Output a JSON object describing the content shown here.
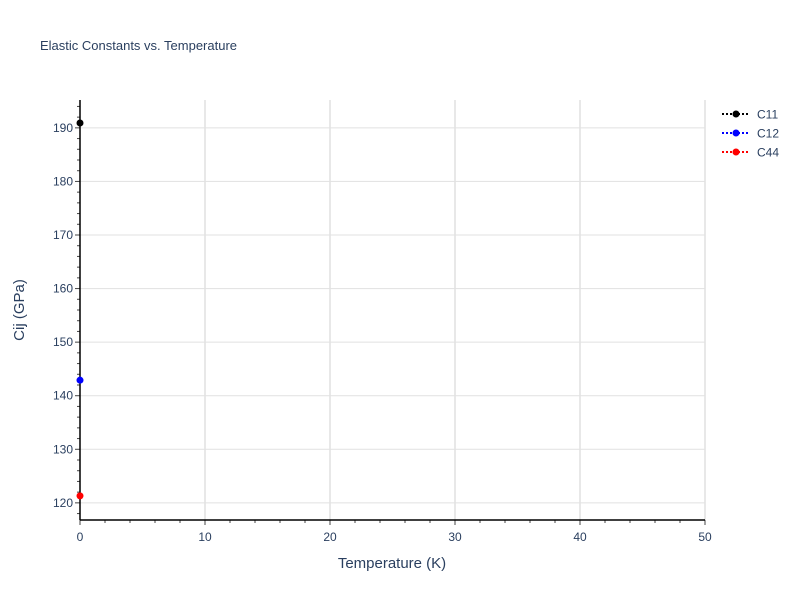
{
  "chart_data": {
    "type": "scatter",
    "title": "Elastic Constants vs. Temperature",
    "xlabel": "Temperature (K)",
    "ylabel": "Cij (GPa)",
    "xlim": [
      0,
      50
    ],
    "ylim": [
      116.8,
      195.2
    ],
    "xticks": [
      0,
      10,
      20,
      30,
      40,
      50
    ],
    "yticks": [
      120,
      130,
      140,
      150,
      160,
      170,
      180,
      190
    ],
    "grid": true,
    "legend_position": "top-right",
    "series": [
      {
        "name": "C11",
        "color": "#000000",
        "line": "dotted",
        "x": [
          0
        ],
        "y": [
          190.9
        ]
      },
      {
        "name": "C12",
        "color": "#0000ff",
        "line": "dotted",
        "x": [
          0
        ],
        "y": [
          142.9
        ]
      },
      {
        "name": "C44",
        "color": "#ff0000",
        "line": "dotted",
        "x": [
          0
        ],
        "y": [
          121.3
        ]
      }
    ]
  }
}
